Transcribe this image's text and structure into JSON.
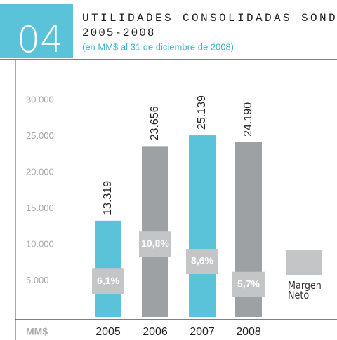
{
  "chart_data": {
    "type": "bar",
    "section": "04",
    "title": "UTILIDADES CONSOLIDADAS SONDA",
    "subtitle": "2005-2008",
    "note": "(en MM$ al 31 de diciembre de 2008)",
    "ylabel": "MM$",
    "categories": [
      "2005",
      "2006",
      "2007",
      "2008"
    ],
    "values": [
      13319,
      23656,
      25139,
      24190
    ],
    "value_labels": [
      "13.319",
      "23.656",
      "25.139",
      "24.190"
    ],
    "colors": [
      "#5bc3d9",
      "#9ea1a4",
      "#5bc3d9",
      "#9ea1a4"
    ],
    "ylim": [
      0,
      30000
    ],
    "yticks": [
      {
        "value": 5000,
        "label": "5.000"
      },
      {
        "value": 10000,
        "label": "10.000"
      },
      {
        "value": 15000,
        "label": "15.000"
      },
      {
        "value": 20000,
        "label": "20.000"
      },
      {
        "value": 25000,
        "label": "25.000"
      },
      {
        "value": 30000,
        "label": "30.000"
      }
    ],
    "y2lim": [
      0,
      29
    ],
    "series": [
      {
        "name": "Margen Neto",
        "color": "#c4c5c7",
        "axis": "y2",
        "values": [
          6.1,
          10.8,
          8.6,
          5.7
        ],
        "value_labels": [
          "6,1%",
          "10,8%",
          "8,6%",
          "5,7%"
        ]
      }
    ]
  }
}
